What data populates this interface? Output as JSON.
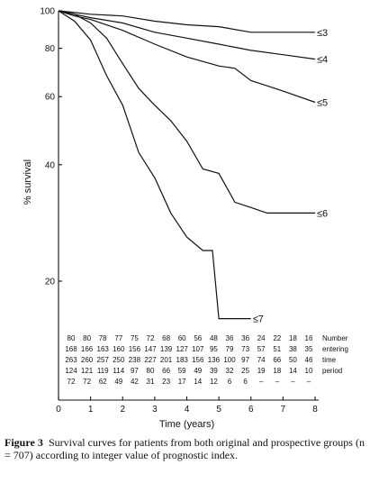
{
  "chart_data": {
    "type": "line",
    "title": "",
    "xlabel": "Time (years)",
    "ylabel": "% survival",
    "xlim": [
      0,
      8
    ],
    "ylim": [
      10,
      100
    ],
    "yscale": "log",
    "x_ticks": [
      "0",
      "1",
      "2",
      "3",
      "4",
      "5",
      "6",
      "7",
      "8"
    ],
    "y_ticks": [
      "20",
      "40",
      "60",
      "80",
      "100"
    ],
    "grid": false,
    "series": [
      {
        "name": "≤3",
        "x": [
          0,
          0.5,
          1,
          2,
          3,
          4,
          5,
          6,
          7,
          8
        ],
        "y": [
          100,
          99,
          98,
          97,
          94,
          92,
          91,
          88,
          88,
          88
        ]
      },
      {
        "name": "≤4",
        "x": [
          0,
          0.5,
          1,
          2,
          3,
          4,
          5,
          6,
          7,
          8
        ],
        "y": [
          100,
          98,
          96,
          93,
          88,
          85,
          82,
          79,
          77,
          75
        ]
      },
      {
        "name": "≤5",
        "x": [
          0,
          0.5,
          1,
          2,
          3,
          4,
          5,
          5.5,
          6,
          6.5,
          7,
          8
        ],
        "y": [
          100,
          97,
          95,
          89,
          82,
          76,
          72,
          71,
          66,
          64,
          62,
          58
        ]
      },
      {
        "name": "≤6",
        "x": [
          0,
          0.5,
          1,
          1.5,
          2,
          2.5,
          3,
          3.5,
          4,
          4.5,
          5,
          5.5,
          6,
          6.5,
          7,
          8
        ],
        "y": [
          100,
          98,
          93,
          85,
          73,
          63,
          57,
          52,
          46,
          39,
          38,
          32,
          31,
          30,
          30,
          30
        ]
      },
      {
        "name": "≤7",
        "x": [
          0,
          0.5,
          1,
          1.5,
          2,
          2.5,
          3,
          3.5,
          4,
          4.5,
          4.8,
          5,
          5.5,
          6
        ],
        "y": [
          100,
          94,
          84,
          68,
          57,
          43,
          37,
          30,
          26,
          24,
          24,
          16,
          16,
          16
        ]
      }
    ],
    "risk_table": {
      "header": [
        "Number",
        "entering",
        "time",
        "period"
      ],
      "rows": [
        [
          "80",
          "80",
          "78",
          "77",
          "75",
          "72",
          "68",
          "60",
          "56",
          "48",
          "36",
          "36",
          "24",
          "22",
          "18",
          "16"
        ],
        [
          "168",
          "166",
          "163",
          "160",
          "156",
          "147",
          "139",
          "127",
          "107",
          "95",
          "79",
          "73",
          "57",
          "51",
          "38",
          "35"
        ],
        [
          "263",
          "260",
          "257",
          "250",
          "238",
          "227",
          "201",
          "183",
          "156",
          "136",
          "100",
          "97",
          "74",
          "66",
          "50",
          "46"
        ],
        [
          "124",
          "121",
          "119",
          "114",
          "97",
          "80",
          "66",
          "59",
          "49",
          "39",
          "32",
          "25",
          "19",
          "18",
          "14",
          "10"
        ],
        [
          "72",
          "72",
          "62",
          "49",
          "42",
          "31",
          "23",
          "17",
          "14",
          "12",
          "6",
          "6",
          "–",
          "–",
          "–",
          "–"
        ]
      ]
    }
  },
  "caption": {
    "label": "Figure 3",
    "text": "Survival curves for patients from both original and prospective groups (n = 707) according to integer value of prognostic index."
  }
}
